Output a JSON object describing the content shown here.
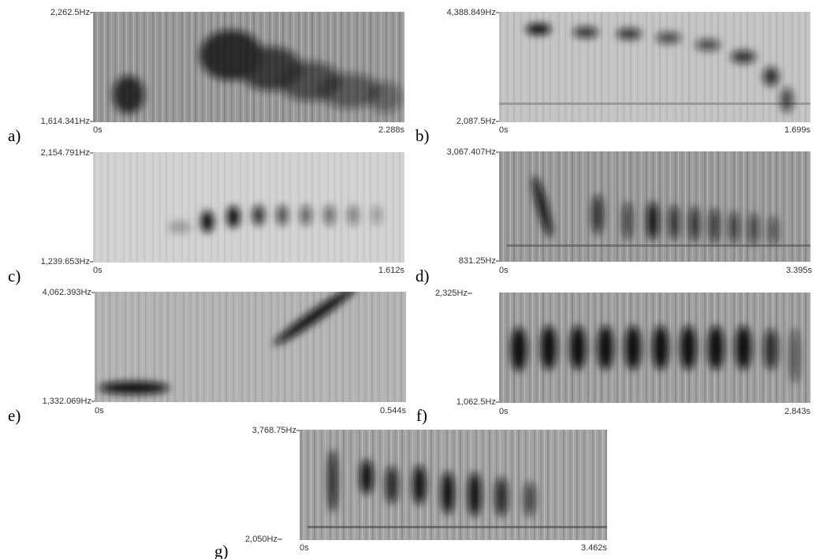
{
  "panels": [
    {
      "label": "a)",
      "freq_max": "2,262.5Hz",
      "freq_min": "1,614.341Hz",
      "time_start": "0s",
      "time_end": "2.288s"
    },
    {
      "label": "b)",
      "freq_max": "4,388.849Hz",
      "freq_min": "2,087.5Hz",
      "time_start": "0s",
      "time_end": "1.699s"
    },
    {
      "label": "c)",
      "freq_max": "2,154.791Hz",
      "freq_min": "1,239.653Hz",
      "time_start": "0s",
      "time_end": "1.612s"
    },
    {
      "label": "d)",
      "freq_max": "3,067.407Hz",
      "freq_min": "831.25Hz",
      "time_start": "0s",
      "time_end": "3.395s"
    },
    {
      "label": "e)",
      "freq_max": "4,062.393Hz",
      "freq_min": "1,332.069Hz",
      "time_start": "0s",
      "time_end": "0.544s"
    },
    {
      "label": "f)",
      "freq_max": "2,325Hz",
      "freq_min": "1,062.5Hz",
      "time_start": "0s",
      "time_end": "2.843s"
    },
    {
      "label": "g)",
      "freq_max": "3,768.75Hz",
      "freq_min": "2,050Hz",
      "time_start": "0s",
      "time_end": "3.462s"
    }
  ]
}
